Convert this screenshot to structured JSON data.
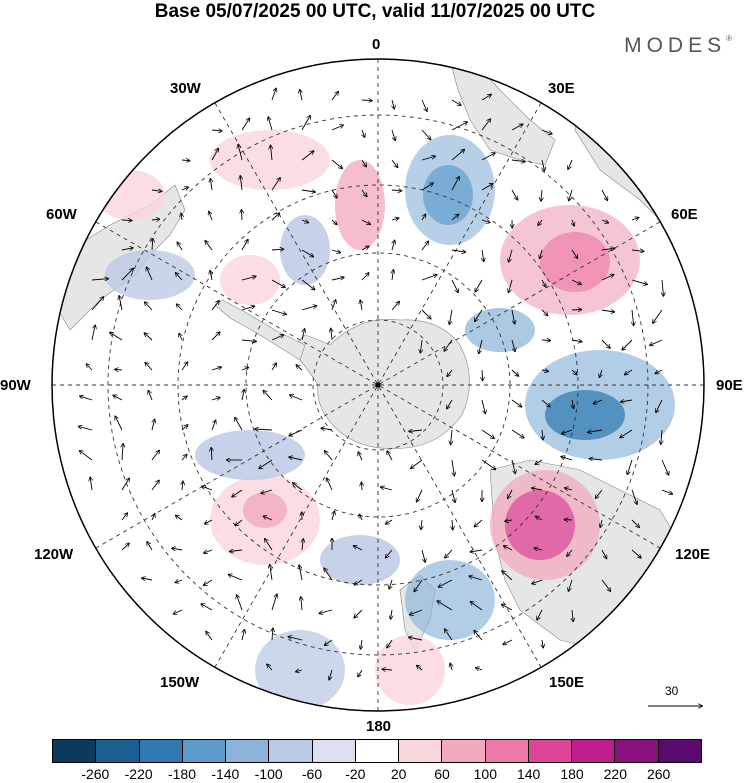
{
  "header": {
    "title": "Base 05/07/2025 00 UTC, valid 11/07/2025 00 UTC",
    "brand": "MODES"
  },
  "map": {
    "projection": "south polar stereographic",
    "longitude_labels": {
      "top": "0",
      "top_right": "30E",
      "upper_right": "60E",
      "right": "90E",
      "lower_right": "120E",
      "bottom_right": "150E",
      "bottom": "180",
      "bottom_left": "150W",
      "lower_left": "120W",
      "left": "90W",
      "upper_left": "60W",
      "top_left": "30W"
    },
    "reference_vector": {
      "label": "30"
    },
    "field_colors": {
      "land": "#e6e6e6",
      "grid": "#333333"
    }
  },
  "colorbar": {
    "ticks": [
      "-260",
      "-220",
      "-180",
      "-140",
      "-100",
      "-60",
      "-20",
      "20",
      "60",
      "100",
      "140",
      "180",
      "220",
      "260"
    ],
    "colors": [
      "#0c3a5c",
      "#1a5f8f",
      "#2f7ab3",
      "#5b9bcb",
      "#8cb4da",
      "#b9c8e4",
      "#dcdff0",
      "#ffffff",
      "#f9d5dc",
      "#f2a8bd",
      "#ec79a8",
      "#de4598",
      "#bf1c8c",
      "#8a1080",
      "#5a0a6e"
    ]
  }
}
